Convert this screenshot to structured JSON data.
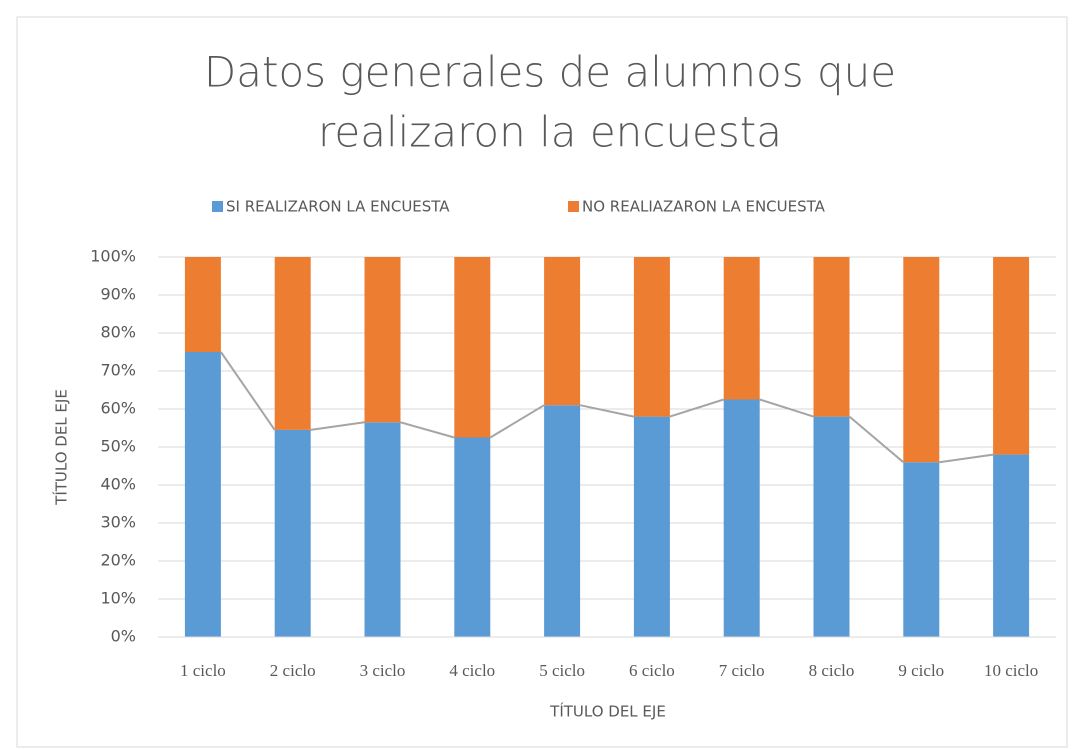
{
  "chart_data": {
    "type": "stacked_bar_100",
    "title": [
      "Datos generales de alumnos que",
      "realizaron la encuesta"
    ],
    "x_label": "TÍTULO DEL EJE",
    "y_label": "TÍTULO DEL EJE",
    "categories": [
      "1 ciclo",
      "2 ciclo",
      "3 ciclo",
      "4 ciclo",
      "5 ciclo",
      "6 ciclo",
      "7 ciclo",
      "8 ciclo",
      "9 ciclo",
      "10 ciclo"
    ],
    "series": [
      {
        "name": "SI REALIZARON LA ENCUESTA",
        "color": "#5b9bd5",
        "values": [
          75,
          54.5,
          56.5,
          52.5,
          61,
          58,
          62.5,
          58,
          46,
          48
        ]
      },
      {
        "name": "NO REALIAZARON LA ENCUESTA",
        "color": "#ed7d31",
        "values": [
          25,
          45.5,
          43.5,
          47.5,
          39,
          42,
          37.5,
          42,
          54,
          52
        ]
      }
    ],
    "series_lines": true,
    "ylim": [
      0,
      100
    ],
    "yticks": [
      {
        "value": 0,
        "label": "0%"
      },
      {
        "value": 10,
        "label": "10%"
      },
      {
        "value": 20,
        "label": "20%"
      },
      {
        "value": 30,
        "label": "30%"
      },
      {
        "value": 40,
        "label": "40%"
      },
      {
        "value": 50,
        "label": "50%"
      },
      {
        "value": 60,
        "label": "60%"
      },
      {
        "value": 70,
        "label": "70%"
      },
      {
        "value": 80,
        "label": "80%"
      },
      {
        "value": 90,
        "label": "90%"
      },
      {
        "value": 100,
        "label": "100%"
      }
    ],
    "grid": true,
    "legend": "top"
  }
}
